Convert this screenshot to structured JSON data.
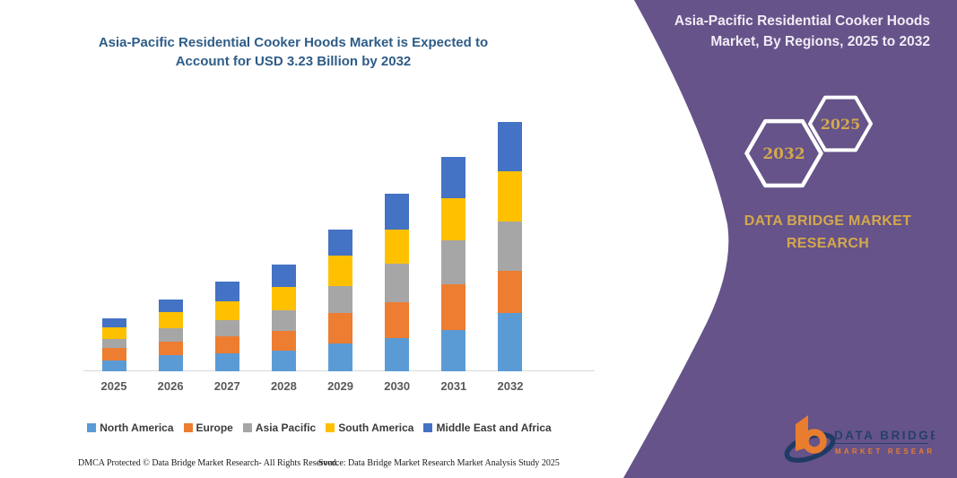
{
  "chart_data": {
    "type": "bar",
    "stacked": true,
    "title": "Asia-Pacific Residential Cooker Hoods Market is Expected to Account for USD 3.23 Billion by 2032",
    "unit": "USD billion",
    "categories": [
      "2025",
      "2026",
      "2027",
      "2028",
      "2029",
      "2030",
      "2031",
      "2032"
    ],
    "series": [
      {
        "name": "North America",
        "color": "#5B9BD5",
        "values": [
          0.14,
          0.21,
          0.23,
          0.27,
          0.36,
          0.43,
          0.54,
          0.75
        ]
      },
      {
        "name": "Europe",
        "color": "#ED7D31",
        "values": [
          0.16,
          0.17,
          0.22,
          0.26,
          0.4,
          0.47,
          0.59,
          0.55
        ]
      },
      {
        "name": "Asia Pacific",
        "color": "#A6A6A6",
        "values": [
          0.12,
          0.17,
          0.21,
          0.27,
          0.35,
          0.5,
          0.57,
          0.64
        ]
      },
      {
        "name": "South America",
        "color": "#FFC000",
        "values": [
          0.15,
          0.21,
          0.24,
          0.3,
          0.4,
          0.44,
          0.55,
          0.65
        ]
      },
      {
        "name": "Middle East and Africa",
        "color": "#4472C4",
        "values": [
          0.12,
          0.16,
          0.26,
          0.29,
          0.34,
          0.46,
          0.53,
          0.64
        ]
      }
    ],
    "totals": [
      0.69,
      0.92,
      1.16,
      1.39,
      1.85,
      2.3,
      2.78,
      3.23
    ],
    "ylim": [
      0,
      3.4
    ],
    "grid": false,
    "legend_position": "bottom",
    "axis_label_color": "#595959"
  },
  "footer": {
    "dmca": "DMCA Protected © Data Bridge Market Research-  All Rights Reserved.",
    "source": "Source: Data Bridge Market Research  Market Analysis Study 2025"
  },
  "right_panel": {
    "heading": "Asia-Pacific Residential Cooker Hoods Market, By Regions, 2025 to 2032",
    "hexagon_back_label": "2032",
    "hexagon_front_label": "2025",
    "brand_text": "DATA BRIDGE MARKET RESEARCH",
    "panel_color": "#655389",
    "gold_color": "#D4A84C"
  },
  "logo": {
    "line1": "DATA BRIDGE",
    "line2": "MARKET RESEARCH"
  }
}
